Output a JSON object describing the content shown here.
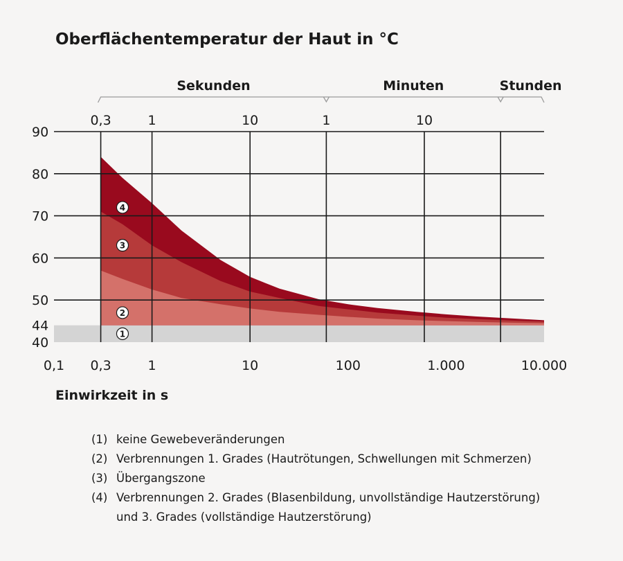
{
  "chart_data": {
    "type": "area",
    "title": "Oberflächentemperatur der Haut in °C",
    "xlabel": "Einwirkzeit in s",
    "x_scale": "log",
    "xlim": [
      0.1,
      10000
    ],
    "ylim": [
      40,
      90
    ],
    "x_ticks": [
      0.1,
      0.3,
      1,
      10,
      100,
      1000,
      10000
    ],
    "x_tick_labels": [
      "0,1",
      "0,3",
      "1",
      "10",
      "100",
      "1.000",
      "10.000"
    ],
    "y_ticks": [
      40,
      44,
      50,
      60,
      70,
      80,
      90
    ],
    "y_tick_labels": [
      "40",
      "44",
      "50",
      "60",
      "70",
      "80",
      "90"
    ],
    "grid": true,
    "top_axis": {
      "groups": [
        {
          "label": "Sekunden",
          "ticks": [
            {
              "x": 0.3,
              "label": "0,3"
            },
            {
              "x": 1,
              "label": "1"
            },
            {
              "x": 10,
              "label": "10"
            }
          ]
        },
        {
          "label": "Minuten",
          "ticks": [
            {
              "x": 60,
              "label": "1"
            },
            {
              "x": 600,
              "label": "10"
            }
          ]
        },
        {
          "label": "Stunden",
          "ticks": [
            {
              "x": 3600,
              "label": ""
            }
          ]
        }
      ]
    },
    "zones": [
      {
        "id": "1",
        "color": "#d4d4d4",
        "marker": {
          "x": 0.5,
          "y": 42
        }
      },
      {
        "id": "2",
        "color": "#d4716a",
        "marker": {
          "x": 0.5,
          "y": 47
        }
      },
      {
        "id": "3",
        "color": "#b63a3a",
        "marker": {
          "x": 0.5,
          "y": 63
        }
      },
      {
        "id": "4",
        "color": "#990a1e",
        "marker": {
          "x": 0.5,
          "y": 72
        }
      }
    ],
    "boundaries": {
      "x": [
        0.3,
        0.5,
        1,
        2,
        5,
        10,
        20,
        50,
        100,
        200,
        500,
        1000,
        2000,
        5000,
        10000
      ],
      "zone2_top": [
        57,
        55,
        52.5,
        50.5,
        49,
        48,
        47.2,
        46.5,
        46,
        45.6,
        45.2,
        45,
        44.8,
        44.6,
        44.5
      ],
      "zone3_top": [
        71,
        68,
        63,
        59,
        54.5,
        52,
        50.5,
        48.6,
        47.8,
        47,
        46.3,
        45.8,
        45.5,
        45.1,
        44.9
      ],
      "zone4_top": [
        84,
        79,
        73,
        66.5,
        59.5,
        55.5,
        52.7,
        50.2,
        49,
        48.1,
        47.2,
        46.6,
        46.1,
        45.6,
        45.2
      ]
    }
  },
  "legend": [
    {
      "num": "(1)",
      "text": "keine Gewebeveränderungen"
    },
    {
      "num": "(2)",
      "text": "Verbrennungen 1. Grades (Hautrötungen, Schwellungen mit Schmerzen)"
    },
    {
      "num": "(3)",
      "text": "Übergangszone"
    },
    {
      "num": "(4)",
      "text": "Verbrennungen 2. Grades (Blasenbildung, unvollständige Hautzerstörung)",
      "text2": "und 3. Grades (vollständige Hautzerstörung)"
    }
  ]
}
